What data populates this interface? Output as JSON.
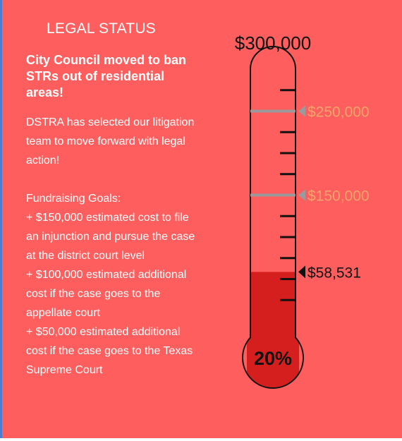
{
  "title": "LEGAL STATUS",
  "headline": "City Council moved to ban STRs out of residential areas!",
  "intro": "DSTRA has selected our litigation team to move forward with legal action!",
  "goals_heading": "Fundraising Goals:",
  "goals": [
    "+ $150,000 estimated cost to file an injunction and pursue the case at the district court level",
    "+ $100,000 estimated additional cost if the case goes to the appellate court",
    "+ $50,000 estimated additional cost if the case goes to the Texas Supreme Court"
  ],
  "thermometer": {
    "goal_label": "$300,000",
    "goal_value": 300000,
    "raised_value": 58531,
    "raised_label": "$58,531",
    "percent_label": "20%",
    "milestones": [
      {
        "value": 250000,
        "label": "$250,000"
      },
      {
        "value": 150000,
        "label": "$150,000"
      }
    ],
    "colors": {
      "fill": "#d51f1f",
      "tube": "#ff5e5e",
      "outline": "#111111",
      "milestone": "#f3a56b",
      "milestone_line": "#9a9a9a"
    }
  }
}
